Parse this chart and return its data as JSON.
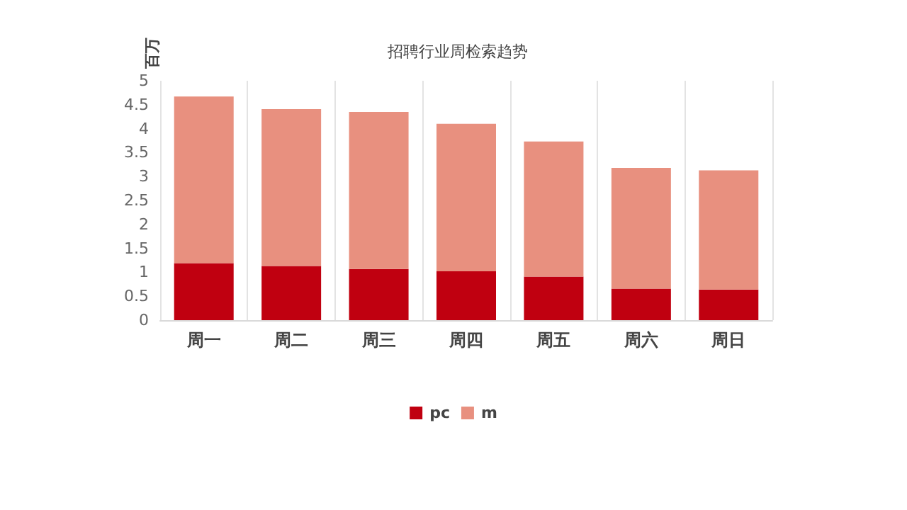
{
  "chart_data": {
    "type": "bar",
    "title": "招聘行业周检索趋势",
    "ylabel": "百万",
    "categories": [
      "周一",
      "周二",
      "周三",
      "周四",
      "周五",
      "周六",
      "周日"
    ],
    "series": [
      {
        "name": "pc",
        "color": "#c00010",
        "values": [
          1.19,
          1.13,
          1.07,
          1.02,
          0.91,
          0.66,
          0.64
        ]
      },
      {
        "name": "m",
        "color": "#e8907f",
        "values": [
          3.48,
          3.28,
          3.28,
          3.08,
          2.82,
          2.52,
          2.49
        ]
      }
    ],
    "stacked": true,
    "ylim": [
      0,
      5
    ],
    "yticks": [
      0,
      0.5,
      1,
      1.5,
      2,
      2.5,
      3,
      3.5,
      4,
      4.5,
      5
    ],
    "grid": "x",
    "legend": "bottom"
  }
}
